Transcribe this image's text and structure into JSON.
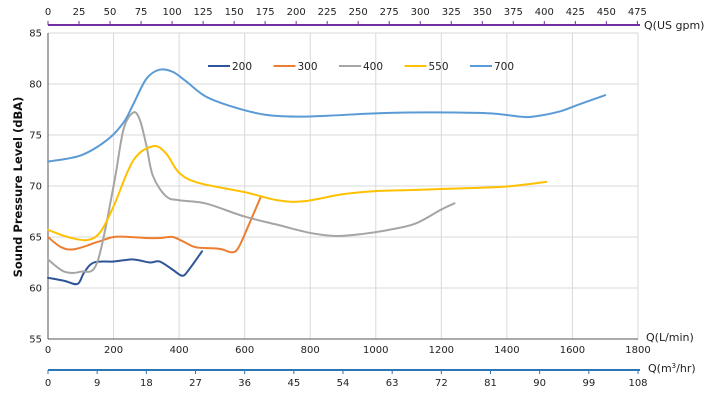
{
  "chart_data": {
    "type": "line",
    "ylabel": "Sound Pressure Level (dBA)",
    "ylim": [
      55,
      85
    ],
    "y_ticks": [
      55,
      60,
      65,
      70,
      75,
      80,
      85
    ],
    "x_axis_bottom": {
      "label": "Q(L/min)",
      "range": [
        0,
        1800
      ],
      "ticks": [
        0,
        200,
        400,
        600,
        800,
        1000,
        1200,
        1400,
        1600,
        1800
      ]
    },
    "x_axis_gpm": {
      "label": "Q(US gpm)",
      "color": "#7030a0",
      "ticks": [
        0,
        25,
        50,
        75,
        100,
        125,
        150,
        175,
        200,
        225,
        250,
        275,
        300,
        325,
        350,
        375,
        400,
        425,
        450,
        475
      ]
    },
    "x_axis_m3hr": {
      "label_main": "Q(m",
      "label_sup": "3",
      "label_end": "/hr)",
      "color": "#2e75b6",
      "ticks": [
        0,
        9,
        18,
        27,
        36,
        45,
        54,
        63,
        72,
        81,
        90,
        99,
        108
      ]
    },
    "grid": true,
    "legend_position": "top-center",
    "series": [
      {
        "name": "200",
        "color": "#2f5597",
        "x": [
          0,
          50,
          90,
          110,
          140,
          200,
          260,
          310,
          340,
          380,
          410,
          430,
          470
        ],
        "y": [
          61,
          60.7,
          60.4,
          61.5,
          62.5,
          62.6,
          62.8,
          62.5,
          62.6,
          61.8,
          61.2,
          61.8,
          63.6
        ]
      },
      {
        "name": "300",
        "color": "#ed7d31",
        "x": [
          0,
          40,
          80,
          150,
          200,
          250,
          300,
          340,
          380,
          410,
          450,
          500,
          530,
          560,
          580,
          610,
          650
        ],
        "y": [
          65,
          64,
          63.8,
          64.5,
          65,
          65,
          64.9,
          64.9,
          65,
          64.6,
          64,
          63.9,
          63.8,
          63.5,
          63.9,
          66,
          69
        ]
      },
      {
        "name": "400",
        "color": "#a5a5a5",
        "x": [
          0,
          50,
          100,
          150,
          200,
          230,
          260,
          280,
          300,
          320,
          360,
          400,
          480,
          600,
          700,
          800,
          880,
          960,
          1040,
          1120,
          1200,
          1240
        ],
        "y": [
          62.8,
          61.6,
          61.6,
          62.5,
          70,
          75.5,
          77.2,
          76.5,
          74,
          71,
          69,
          68.6,
          68.3,
          67,
          66.2,
          65.4,
          65.1,
          65.3,
          65.7,
          66.3,
          67.7,
          68.3
        ]
      },
      {
        "name": "550",
        "color": "#ffc000",
        "x": [
          0,
          60,
          120,
          160,
          200,
          260,
          320,
          360,
          400,
          460,
          600,
          700,
          780,
          900,
          1000,
          1100,
          1200,
          1300,
          1400,
          1470,
          1520
        ],
        "y": [
          65.7,
          65,
          64.7,
          65.5,
          68,
          72.5,
          73.9,
          73.2,
          71.3,
          70.3,
          69.4,
          68.6,
          68.5,
          69.2,
          69.5,
          69.6,
          69.7,
          69.8,
          69.95,
          70.2,
          70.4
        ]
      },
      {
        "name": "700",
        "color": "#5b9bd5",
        "x": [
          0,
          100,
          180,
          230,
          260,
          300,
          340,
          380,
          420,
          480,
          560,
          660,
          760,
          860,
          980,
          1100,
          1240,
          1360,
          1440,
          1480,
          1560,
          1620,
          1700
        ],
        "y": [
          72.4,
          73,
          74.5,
          76.2,
          78,
          80.5,
          81.4,
          81.2,
          80.3,
          78.8,
          77.8,
          77,
          76.8,
          76.9,
          77.1,
          77.2,
          77.2,
          77.1,
          76.8,
          76.8,
          77.3,
          78,
          78.9
        ]
      }
    ]
  }
}
